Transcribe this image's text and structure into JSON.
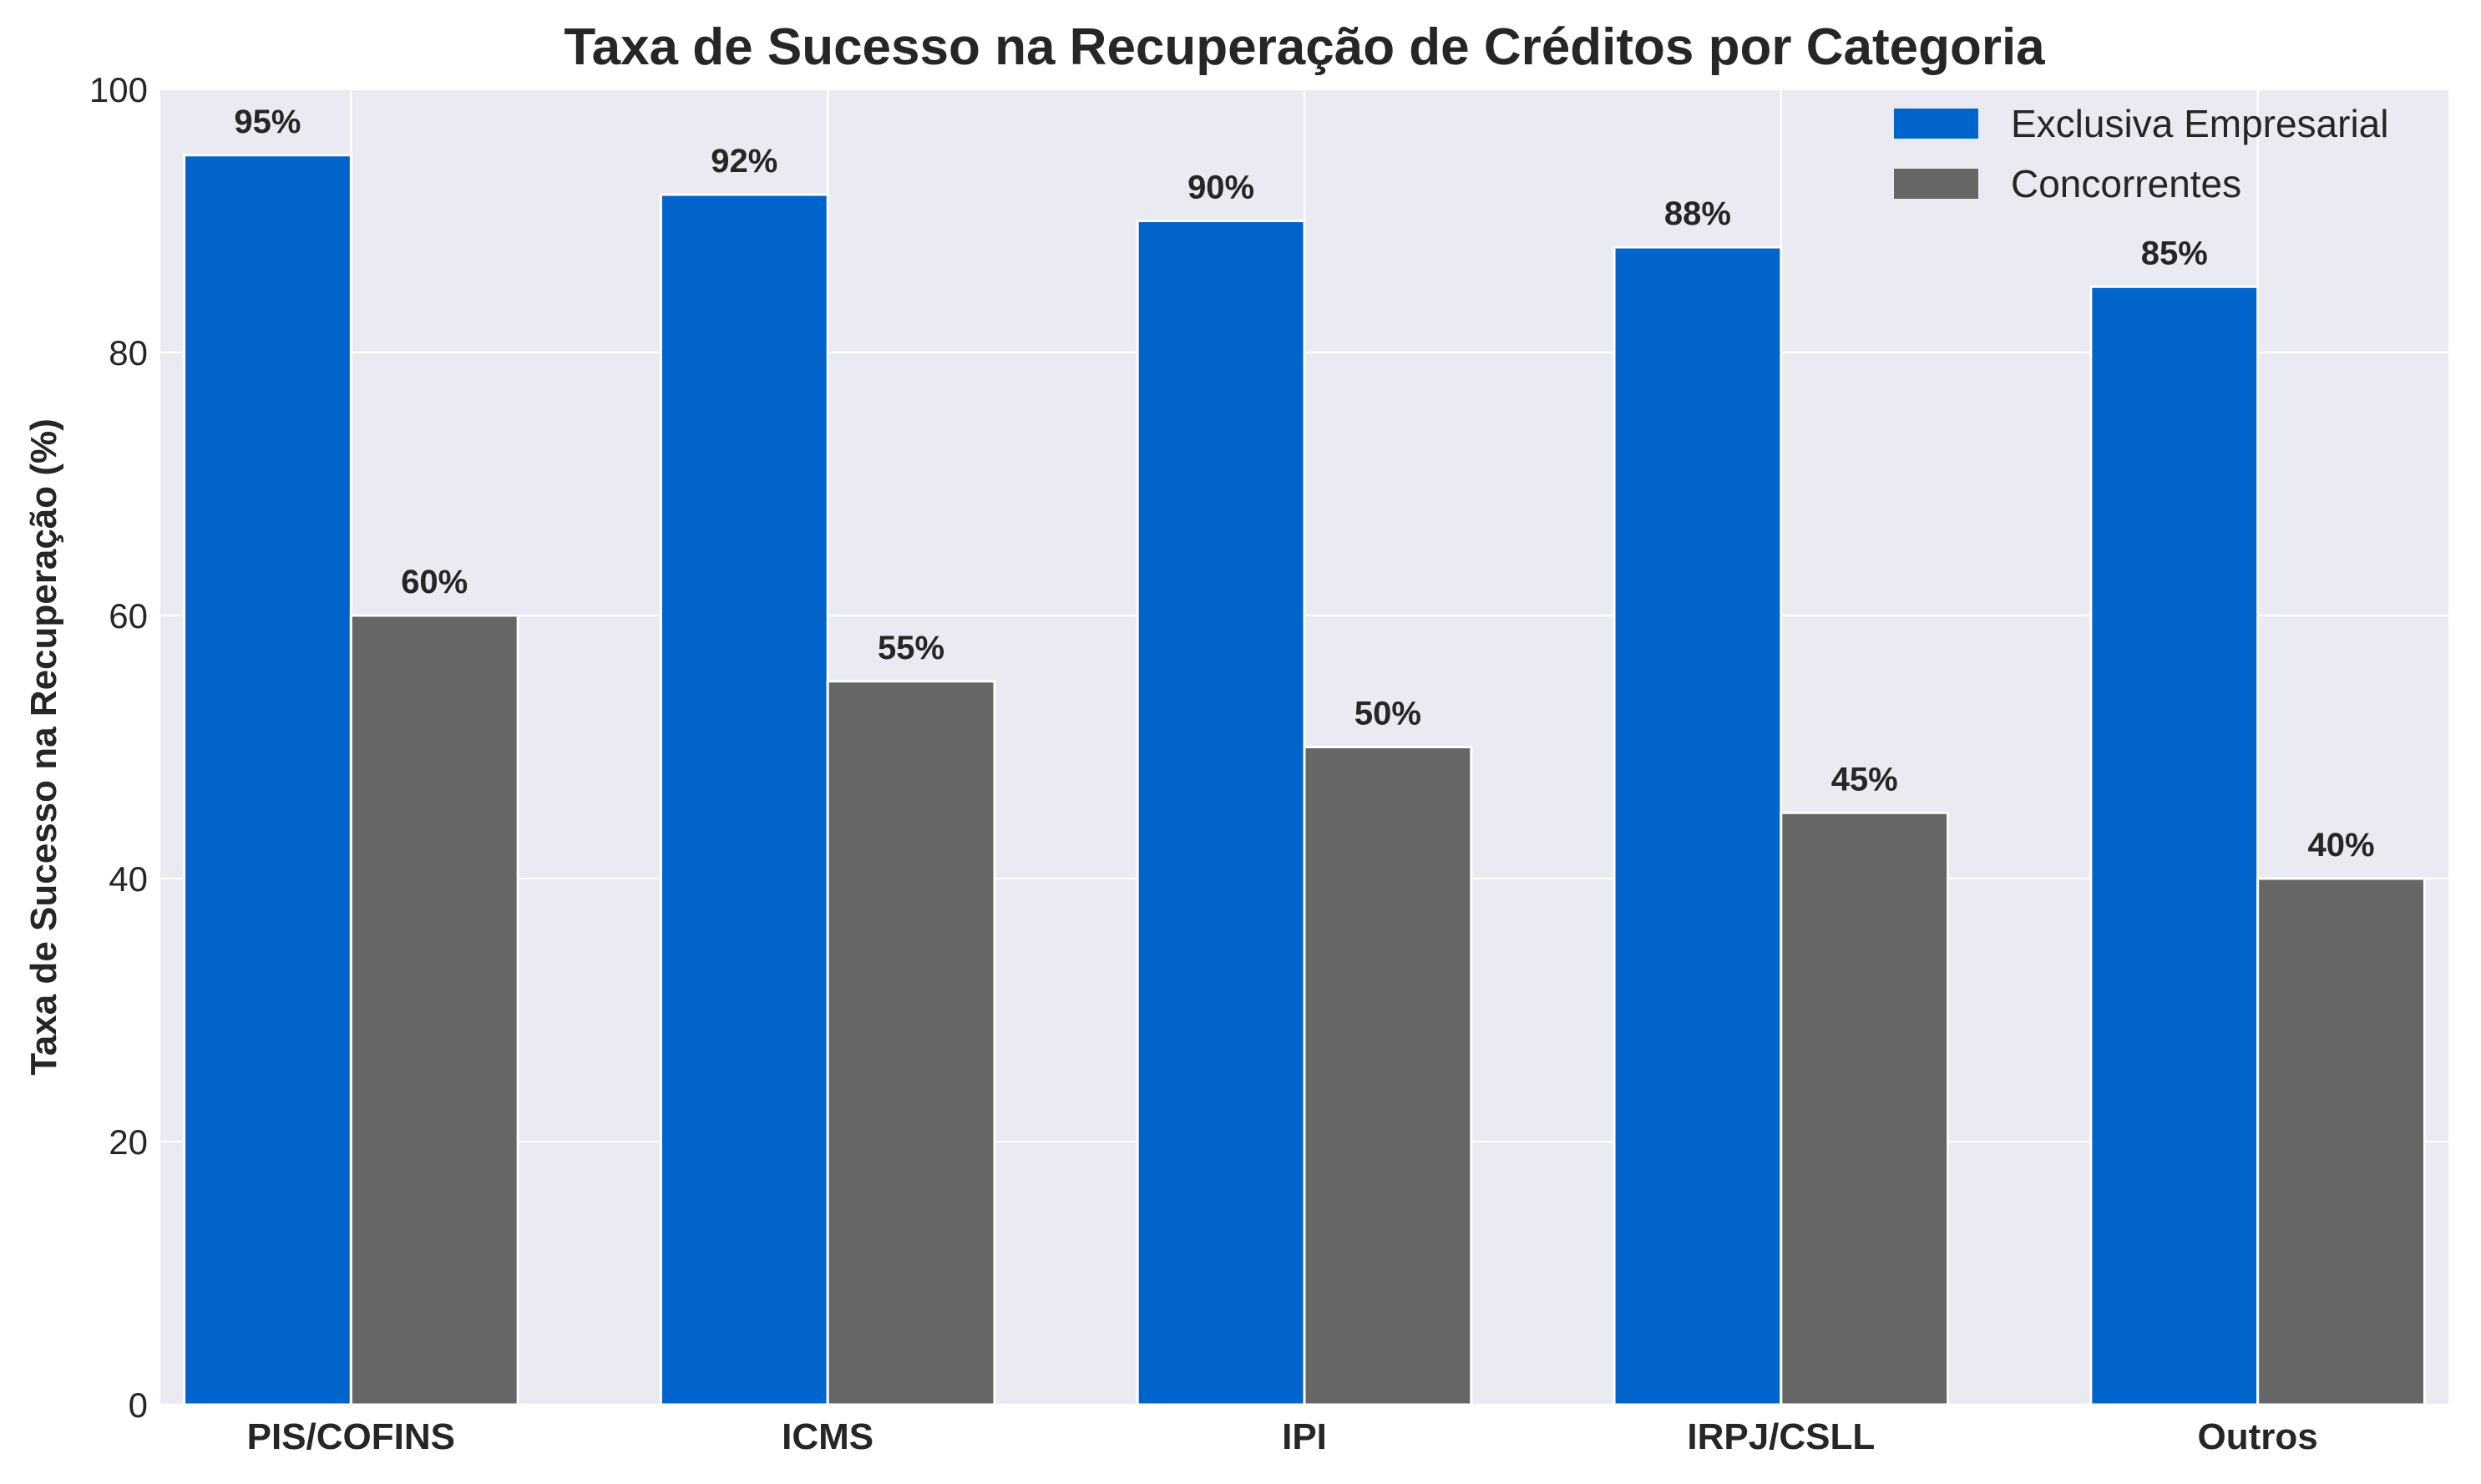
{
  "chart_data": {
    "type": "bar",
    "title": "Taxa de Sucesso na Recuperação de Créditos por Categoria",
    "xlabel": "",
    "ylabel": "Taxa de Sucesso na Recuperação (%)",
    "categories": [
      "PIS/COFINS",
      "ICMS",
      "IPI",
      "IRPJ/CSLL",
      "Outros"
    ],
    "series": [
      {
        "name": "Exclusiva Empresarial",
        "values": [
          95,
          92,
          90,
          88,
          85
        ],
        "labels": [
          "95%",
          "92%",
          "90%",
          "88%",
          "85%"
        ],
        "color": "#0064CB"
      },
      {
        "name": "Concorrentes",
        "values": [
          60,
          55,
          50,
          45,
          40
        ],
        "labels": [
          "60%",
          "55%",
          "50%",
          "45%",
          "40%"
        ],
        "color": "#666666"
      }
    ],
    "ylim": [
      0,
      100
    ],
    "yticks": [
      0,
      20,
      40,
      60,
      80,
      100
    ],
    "ytick_labels": [
      "0",
      "20",
      "40",
      "60",
      "80",
      "100"
    ],
    "grid": true,
    "legend_position": "top-right",
    "background_color": "#EAEAF2",
    "grid_color": "#FFFFFF"
  }
}
